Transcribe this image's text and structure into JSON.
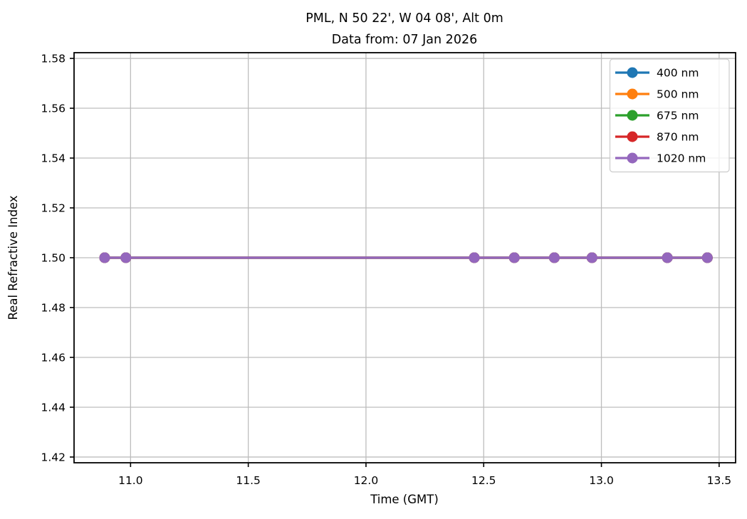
{
  "chart_data": {
    "type": "line",
    "title": "PML, N 50 22', W 04 08', Alt 0m",
    "subtitle": "Data from: 07 Jan 2026",
    "xlabel": "Time (GMT)",
    "ylabel": "Real Refractive Index",
    "xlim": [
      10.76,
      13.57
    ],
    "ylim": [
      1.4177,
      1.5823
    ],
    "xticks": [
      11.0,
      11.5,
      12.0,
      12.5,
      13.0,
      13.5
    ],
    "xtick_labels": [
      "11.0",
      "11.5",
      "12.0",
      "12.5",
      "13.0",
      "13.5"
    ],
    "yticks": [
      1.42,
      1.44,
      1.46,
      1.48,
      1.5,
      1.52,
      1.54,
      1.56,
      1.58
    ],
    "ytick_labels": [
      "1.42",
      "1.44",
      "1.46",
      "1.48",
      "1.50",
      "1.52",
      "1.54",
      "1.56",
      "1.58"
    ],
    "grid": true,
    "legend_position": "upper right",
    "x": [
      10.89,
      10.98,
      12.46,
      12.63,
      12.8,
      12.96,
      13.28,
      13.45
    ],
    "series": [
      {
        "name": "400 nm",
        "color": "#1f77b4",
        "values": [
          1.5,
          1.5,
          1.5,
          1.5,
          1.5,
          1.5,
          1.5,
          1.5
        ]
      },
      {
        "name": "500 nm",
        "color": "#ff7f0e",
        "values": [
          1.5,
          1.5,
          1.5,
          1.5,
          1.5,
          1.5,
          1.5,
          1.5
        ]
      },
      {
        "name": "675 nm",
        "color": "#2ca02c",
        "values": [
          1.5,
          1.5,
          1.5,
          1.5,
          1.5,
          1.5,
          1.5,
          1.5
        ]
      },
      {
        "name": "870 nm",
        "color": "#d62728",
        "values": [
          1.5,
          1.5,
          1.5,
          1.5,
          1.5,
          1.5,
          1.5,
          1.5
        ]
      },
      {
        "name": "1020 nm",
        "color": "#9467bd",
        "values": [
          1.5,
          1.5,
          1.5,
          1.5,
          1.5,
          1.5,
          1.5,
          1.5
        ]
      }
    ],
    "colors": {
      "grid": "#bdbdbd",
      "spine": "#000000",
      "tick": "#000000",
      "legend_border": "#cccccc",
      "legend_background": "#ffffff"
    }
  }
}
